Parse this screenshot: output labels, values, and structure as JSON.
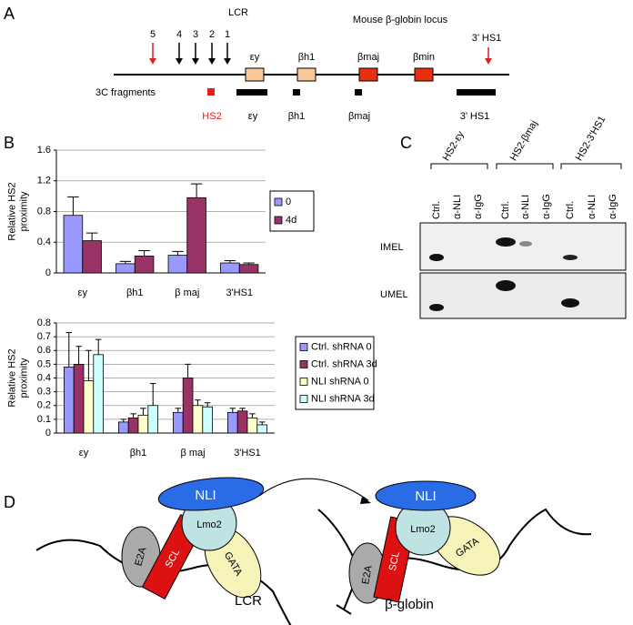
{
  "panel_labels": [
    "A",
    "B",
    "C",
    "D"
  ],
  "locus": {
    "lcr": "LCR",
    "title": "Mouse β-globin locus",
    "hs_sites": [
      "5",
      "4",
      "3",
      "2",
      "1"
    ],
    "genes": [
      "εy",
      "βh1",
      "βmaj",
      "βmin"
    ],
    "hs1": "3’ HS1",
    "fragments_label": "3C fragments",
    "fragments": [
      "HS2",
      "εy",
      "βh1",
      "βmaj",
      "3’ HS1"
    ]
  },
  "chart_data": [
    {
      "type": "bar",
      "ylabel": [
        "Relative HS2",
        "proximity"
      ],
      "categories": [
        "εy",
        "βh1",
        "β maj",
        "3'HS1"
      ],
      "series": [
        {
          "name": "0",
          "color": "#9999ff",
          "values": [
            0.75,
            0.12,
            0.23,
            0.13
          ],
          "errors": [
            0.24,
            0.03,
            0.05,
            0.03
          ]
        },
        {
          "name": "4d",
          "color": "#993366",
          "values": [
            0.42,
            0.22,
            0.98,
            0.11
          ],
          "errors": [
            0.1,
            0.07,
            0.18,
            0.02
          ]
        }
      ],
      "ylim": [
        0,
        1.6
      ],
      "yticks": [
        0,
        0.4,
        0.8,
        1.2,
        1.6
      ],
      "grid": true
    },
    {
      "type": "bar",
      "ylabel": [
        "Relative HS2",
        "proximity"
      ],
      "categories": [
        "εy",
        "βh1",
        "β maj",
        "3'HS1"
      ],
      "series": [
        {
          "name": "Ctrl. shRNA 0",
          "color": "#9999ff",
          "values": [
            0.48,
            0.08,
            0.15,
            0.15
          ],
          "errors": [
            0.25,
            0.02,
            0.03,
            0.03
          ]
        },
        {
          "name": "Ctrl. shRNA 3d",
          "color": "#993366",
          "values": [
            0.5,
            0.11,
            0.4,
            0.16
          ],
          "errors": [
            0.13,
            0.03,
            0.1,
            0.02
          ]
        },
        {
          "name": "NLI shRNA 0",
          "color": "#ffffcc",
          "values": [
            0.38,
            0.13,
            0.2,
            0.11
          ],
          "errors": [
            0.22,
            0.05,
            0.04,
            0.03
          ]
        },
        {
          "name": "NLI shRNA 3d",
          "color": "#ccffff",
          "values": [
            0.57,
            0.2,
            0.19,
            0.06
          ],
          "errors": [
            0.11,
            0.16,
            0.03,
            0.02
          ]
        }
      ],
      "ylim": [
        0,
        0.8
      ],
      "yticks": [
        0,
        0.1,
        0.2,
        0.3,
        0.4,
        0.5,
        0.6,
        0.7,
        0.8
      ],
      "grid": true
    }
  ],
  "gel": {
    "groups": [
      "HS2-εy",
      "HS2-βmaj",
      "HS2-3'HS1"
    ],
    "lanes": [
      "Ctrl.",
      "α-NLI",
      "α-IgG",
      "Ctrl.",
      "α-NLI",
      "α-IgG",
      "Ctrl.",
      "α-NLI",
      "α-IgG"
    ],
    "rows": [
      "IMEL",
      "UMEL"
    ]
  },
  "model": {
    "left": {
      "nli": "NLI",
      "lmo2": "Lmo2",
      "gata": "GATA",
      "scl": "SCL",
      "e2a": "E2A",
      "label": "LCR"
    },
    "right": {
      "nli": "NLI",
      "lmo2": "Lmo2",
      "gata": "GATA",
      "scl": "SCL",
      "e2a": "E2A",
      "label": "β-globin"
    }
  }
}
